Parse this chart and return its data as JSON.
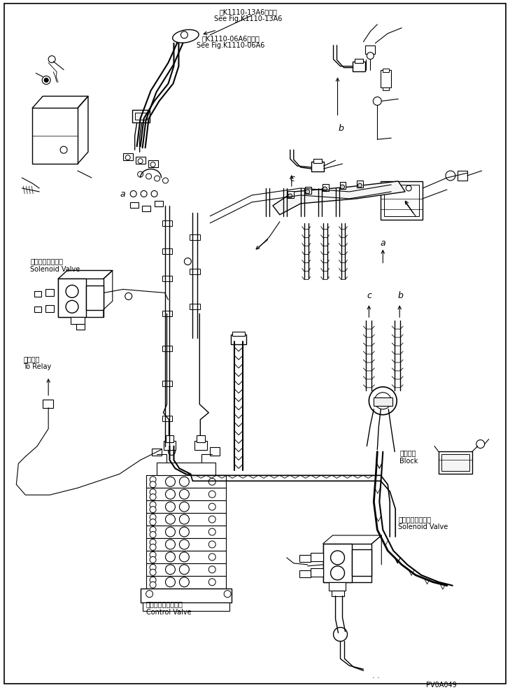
{
  "bg_color": "#ffffff",
  "line_color": "#000000",
  "fig_width": 7.29,
  "fig_height": 9.86,
  "dpi": 100,
  "labels": {
    "ref1_jp": "第K1110-13A6図参照",
    "ref1_en": "See Fig.K1110-13A6",
    "ref2_jp": "第K1110-06A6図参照",
    "ref2_en": "See Fig.K1110-06A6",
    "solenoid1_jp": "ソレノイドバルブ",
    "solenoid1_en": "Solenoid Valve",
    "relay_jp": "リレーへ",
    "relay_en": "To Relay",
    "control_jp": "コントロールバルブ",
    "control_en": "Control Valve",
    "block_jp": "ブロック",
    "block_en": "Block",
    "solenoid2_jp": "ソレノイドバルブ",
    "solenoid2_en": "Solenoid Valve",
    "label_a1": "a",
    "label_a2": "a",
    "label_b1": "b",
    "label_b2": "b",
    "label_c1": "c",
    "label_c2": "c",
    "part_id": "PV0A049"
  }
}
